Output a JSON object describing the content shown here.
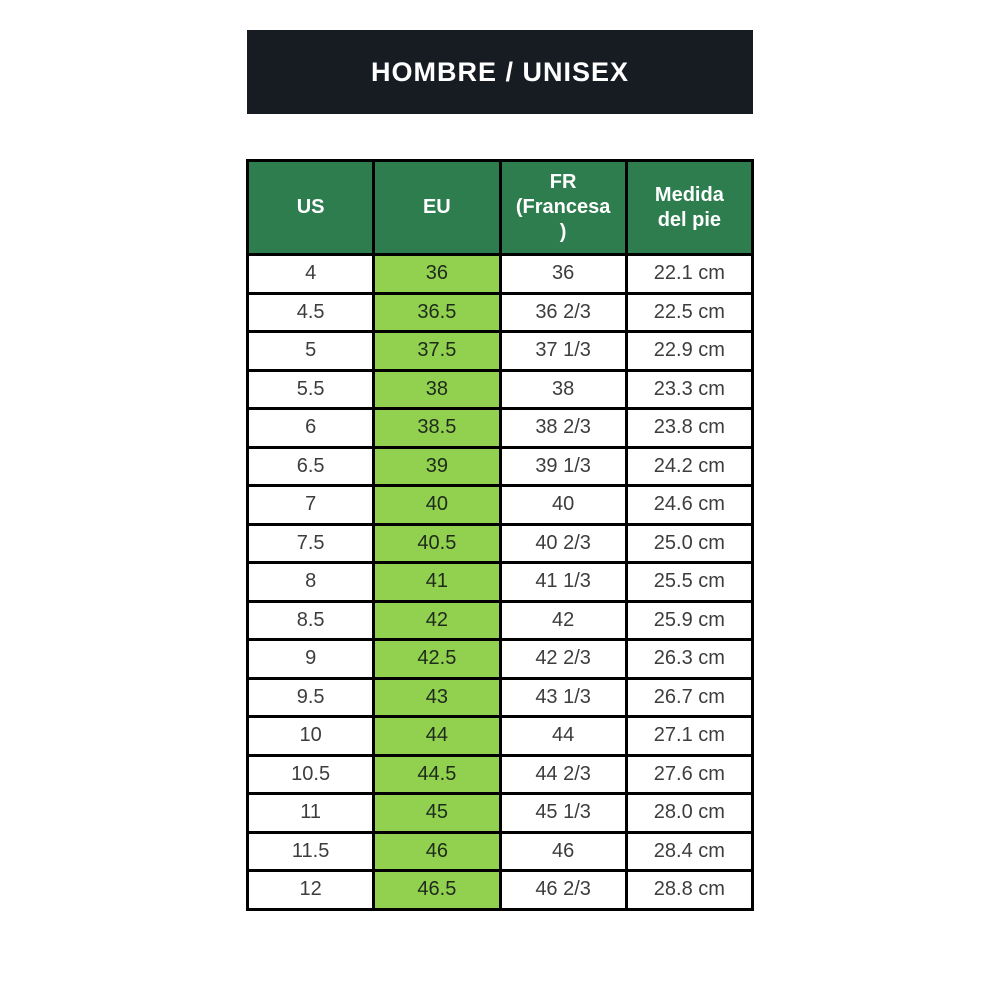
{
  "banner": {
    "title": "HOMBRE / UNISEX"
  },
  "table": {
    "headers": [
      {
        "label": "US"
      },
      {
        "label": "EU"
      },
      {
        "label": "FR\n(Francesa\n)"
      },
      {
        "label": "Medida\ndel pie"
      }
    ]
  },
  "chart_data": {
    "type": "table",
    "title": "HOMBRE / UNISEX",
    "columns": [
      "US",
      "EU",
      "FR (Francesa)",
      "Medida del pie"
    ],
    "rows": [
      [
        "4",
        "36",
        "36",
        "22.1 cm"
      ],
      [
        "4.5",
        "36.5",
        "36 2/3",
        "22.5 cm"
      ],
      [
        "5",
        "37.5",
        "37 1/3",
        "22.9 cm"
      ],
      [
        "5.5",
        "38",
        "38",
        "23.3 cm"
      ],
      [
        "6",
        "38.5",
        "38 2/3",
        "23.8 cm"
      ],
      [
        "6.5",
        "39",
        "39 1/3",
        "24.2 cm"
      ],
      [
        "7",
        "40",
        "40",
        "24.6 cm"
      ],
      [
        "7.5",
        "40.5",
        "40 2/3",
        "25.0 cm"
      ],
      [
        "8",
        "41",
        "41 1/3",
        "25.5 cm"
      ],
      [
        "8.5",
        "42",
        "42",
        "25.9 cm"
      ],
      [
        "9",
        "42.5",
        "42 2/3",
        "26.3 cm"
      ],
      [
        "9.5",
        "43",
        "43 1/3",
        "26.7 cm"
      ],
      [
        "10",
        "44",
        "44",
        "27.1 cm"
      ],
      [
        "10.5",
        "44.5",
        "44 2/3",
        "27.6 cm"
      ],
      [
        "11",
        "45",
        "45 1/3",
        "28.0 cm"
      ],
      [
        "11.5",
        "46",
        "46",
        "28.4 cm"
      ],
      [
        "12",
        "46.5",
        "46 2/3",
        "28.8 cm"
      ]
    ],
    "highlighted_column": "EU",
    "layout": {
      "grid": true,
      "header_position": "top"
    }
  },
  "colors": {
    "banner_bg": "#161c22",
    "header_bg": "#2d7d4f",
    "eu_highlight_bg": "#92d050",
    "border": "#000000",
    "header_text": "#ffffff",
    "body_text": "#3d3d3d"
  }
}
